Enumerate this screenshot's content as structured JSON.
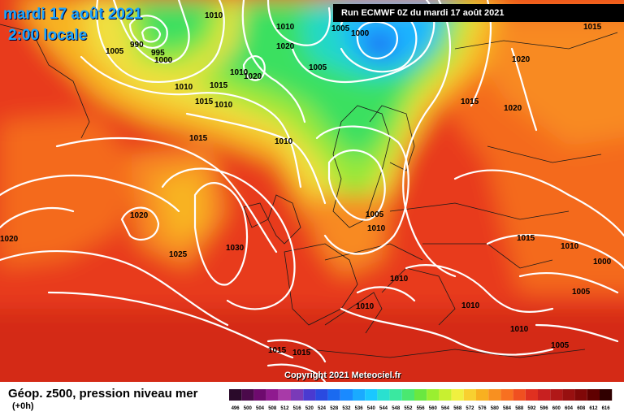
{
  "header": {
    "date": "mardi 17 août 2021",
    "time": "2:00 locale",
    "run": "Run ECMWF 0Z du mardi 17 août 2021"
  },
  "footer": {
    "title": "Géop. z500, pression niveau mer",
    "offset": "(+0h)",
    "copyright": "Copyright 2021 Meteociel.fr"
  },
  "isobar_labels": [
    "1010",
    "1005",
    "990",
    "995",
    "1000",
    "1010",
    "1010",
    "1015",
    "1010",
    "1015",
    "1010",
    "1020",
    "1005",
    "1000",
    "1005",
    "1015",
    "1020",
    "1015",
    "1020",
    "1010",
    "1015",
    "1020",
    "1020",
    "1025",
    "1030",
    "1005",
    "1010",
    "1010",
    "1015",
    "1010",
    "1000",
    "1010",
    "1005",
    "1010",
    "1010",
    "1005",
    "1015",
    "1015",
    "1020"
  ],
  "scale": {
    "labels": [
      "496",
      "500",
      "504",
      "508",
      "512",
      "516",
      "520",
      "524",
      "528",
      "532",
      "536",
      "540",
      "544",
      "548",
      "552",
      "556",
      "560",
      "564",
      "568",
      "572",
      "576",
      "580",
      "584",
      "588",
      "592",
      "596",
      "600",
      "604",
      "608",
      "612",
      "616"
    ],
    "colors": [
      "#2a0a2a",
      "#4b0a4b",
      "#6e0a6e",
      "#8f1a8f",
      "#a83aa8",
      "#7a3ab8",
      "#4a3ad0",
      "#2a4ae0",
      "#1a6af0",
      "#1a8aff",
      "#1aaaff",
      "#1ac8ff",
      "#2ae0d0",
      "#3ae8a0",
      "#4ae870",
      "#6ae840",
      "#9aef30",
      "#c8f030",
      "#f0f040",
      "#f8d030",
      "#f8b020",
      "#f89020",
      "#f87020",
      "#f05020",
      "#e03020",
      "#c82020",
      "#b01818",
      "#981010",
      "#800808",
      "#600000",
      "#300000"
    ]
  }
}
